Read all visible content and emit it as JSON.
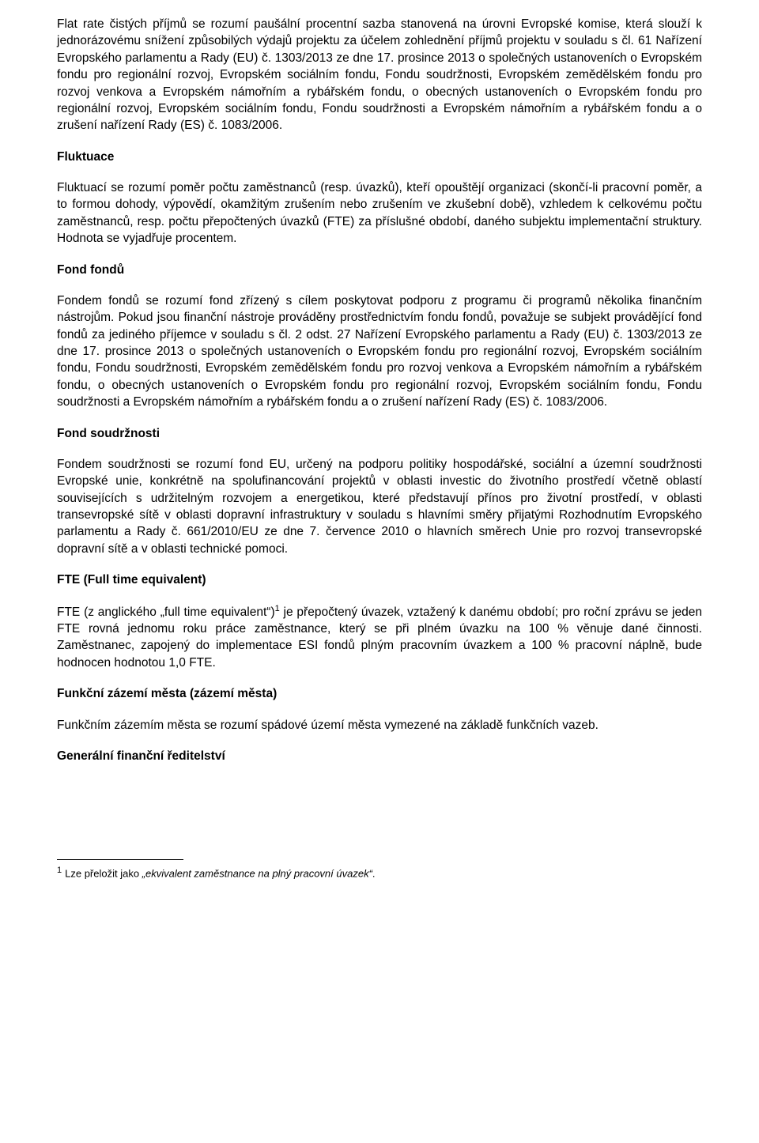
{
  "paragraphs": {
    "p1": "Flat rate čistých příjmů se rozumí paušální procentní sazba stanovená na úrovni Evropské komise, která slouží k jednorázovému snížení způsobilých výdajů projektu za účelem zohlednění příjmů projektu v souladu s čl. 61 Nařízení Evropského parlamentu a Rady (EU) č. 1303/2013 ze dne 17. prosince 2013 o společných ustanoveních o Evropském fondu pro regionální rozvoj, Evropském sociálním fondu, Fondu soudržnosti, Evropském zemědělském fondu pro rozvoj venkova a Evropském námořním a rybářském fondu, o obecných ustanoveních o Evropském fondu pro regionální rozvoj, Evropském sociálním fondu, Fondu soudržnosti a Evropském námořním a rybářském fondu a o zrušení nařízení Rady (ES) č. 1083/2006.",
    "h2": "Fluktuace",
    "p2": "Fluktuací se rozumí poměr počtu zaměstnanců (resp. úvazků), kteří opouštějí organizaci (skončí-li pracovní poměr, a to formou dohody, výpovědí, okamžitým zrušením nebo zrušením ve zkušební době), vzhledem k celkovému počtu zaměstnanců, resp. počtu přepočtených úvazků (FTE) za příslušné období, daného subjektu implementační struktury. Hodnota se vyjadřuje procentem.",
    "h3": "Fond fondů",
    "p3": "Fondem fondů se rozumí fond zřízený s cílem poskytovat podporu z programu či programů několika finančním nástrojům. Pokud jsou finanční nástroje prováděny prostřednictvím fondu fondů, považuje se subjekt provádějící fond fondů za jediného příjemce v souladu s čl. 2 odst. 27 Nařízení Evropského parlamentu a Rady (EU) č. 1303/2013 ze dne 17. prosince 2013 o společných ustanoveních o Evropském fondu pro regionální rozvoj, Evropském sociálním fondu, Fondu soudržnosti, Evropském zemědělském fondu pro rozvoj venkova a Evropském námořním a rybářském fondu, o obecných ustanoveních o Evropském fondu pro regionální rozvoj, Evropském sociálním fondu, Fondu soudržnosti a Evropském námořním a rybářském fondu a o zrušení nařízení Rady (ES) č. 1083/2006.",
    "h4": "Fond soudržnosti",
    "p4": "Fondem soudržnosti se rozumí fond EU, určený na podporu politiky hospodářské, sociální a územní soudržnosti Evropské unie, konkrétně na spolufinancování projektů v oblasti investic do životního prostředí včetně oblastí souvisejících s udržitelným rozvojem a energetikou, které představují přínos pro životní prostředí, v oblasti transevropské sítě v oblasti dopravní infrastruktury v souladu s hlavními směry přijatými Rozhodnutím Evropského parlamentu a Rady č. 661/2010/EU ze dne 7. července 2010 o hlavních směrech Unie pro rozvoj transevropské dopravní sítě a v oblasti technické pomoci.",
    "h5": "FTE (Full time equivalent)",
    "p5a": "FTE (z anglického „full time equivalent“)",
    "p5b": " je přepočtený úvazek, vztažený k danému období; pro roční zprávu se jeden FTE rovná jednomu roku práce zaměstnance, který se při plném úvazku na 100 % věnuje dané činnosti. Zaměstnanec, zapojený do implementace ESI fondů plným pracovním úvazkem a 100 % pracovní náplně, bude hodnocen hodnotou 1,0 FTE.",
    "h6": "Funkční zázemí města (zázemí města)",
    "p6": "Funkčním zázemím města se rozumí spádové území města vymezené na základě funkčních vazeb.",
    "h7": "Generální finanční ředitelství"
  },
  "footnote": {
    "marker": "1",
    "prefix": "Lze přeložit jako ",
    "quoted": "„ekvivalent zaměstnance na plný pracovní úvazek“",
    "suffix": "."
  }
}
